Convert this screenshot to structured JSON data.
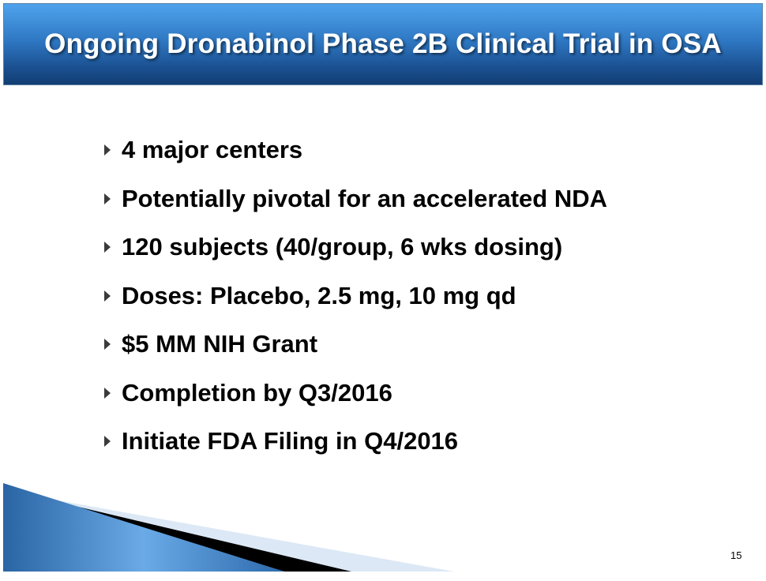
{
  "slide": {
    "title": "Ongoing Dronabinol Phase 2B Clinical Trial in OSA",
    "bullets": [
      "4 major centers",
      "Potentially pivotal for an accelerated NDA",
      "120 subjects (40/group, 6 wks dosing)",
      "Doses: Placebo, 2.5 mg, 10 mg qd",
      "$5 MM NIH Grant",
      "Completion by Q3/2016",
      "Initiate FDA Filing in Q4/2016"
    ],
    "page_number": "15",
    "colors": {
      "header_top": "#4fa3ec",
      "header_bottom": "#123e72",
      "bullet_marker": "#3b3b3b"
    },
    "bullet_icon": "triangle-right-icon"
  }
}
